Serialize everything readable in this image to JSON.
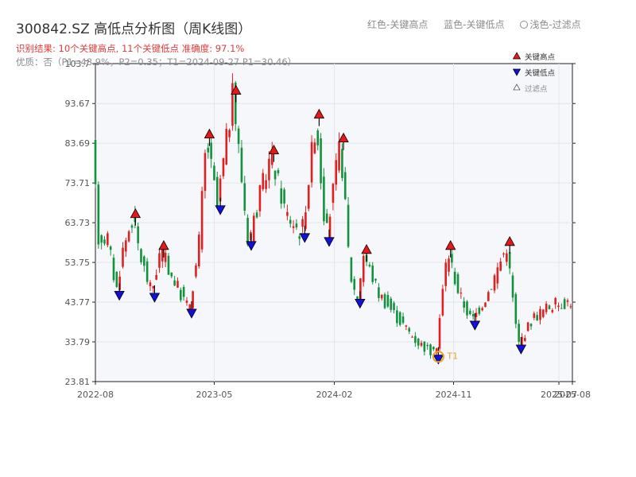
{
  "header": {
    "title": "300842.SZ 高低点分析图（周K线图）",
    "subtitle": "识别结果: 10个关键高点, 11个关键低点  准确度: 97.1%",
    "status": "优质：否（P1=48.9%，P2=0.35；T1=2024-09-27 P1=30.46）",
    "top_legend": {
      "red": "红色-关键高点",
      "blue": "蓝色-关键低点",
      "light": "浅色-过滤点"
    }
  },
  "colors": {
    "up": "#e02020",
    "down": "#12923c",
    "high_marker": "#e81818",
    "low_marker": "#1010d8",
    "t1": "#f0a020",
    "plot_bg": "#f5f7fa",
    "grid": "#e2e6ec"
  },
  "chart_data": {
    "type": "candlestick",
    "title": "300842.SZ 高低点分析图（周K线图）",
    "xlabel": "",
    "ylabel": "",
    "y_ticks": [
      "23.81",
      "33.79",
      "43.77",
      "53.75",
      "63.73",
      "73.71",
      "83.69",
      "93.67",
      "103.7"
    ],
    "ylim": [
      23.81,
      103.7
    ],
    "x_ticks": [
      "2022-08",
      "2023-05",
      "2024-02",
      "2024-11",
      "2025-07",
      "2025-08"
    ],
    "x_tick_dates": [
      "2022-08-01",
      "2023-05-01",
      "2024-02-01",
      "2024-11-01",
      "2025-07-01",
      "2025-08-01"
    ],
    "xlim": [
      "2022-08-01",
      "2025-08-01"
    ],
    "grid": true,
    "legend": {
      "position": "top-right",
      "entries": [
        {
          "label": "关键高点",
          "symbol": "triangle-up",
          "color": "red"
        },
        {
          "label": "关键低点",
          "symbol": "triangle-down",
          "color": "blue"
        },
        {
          "label": "过滤点",
          "symbol": "triangle-up-outline",
          "color": "light"
        }
      ]
    },
    "key_highs": [
      {
        "date": "2022-11-01",
        "value": 65
      },
      {
        "date": "2023-01-05",
        "value": 57
      },
      {
        "date": "2023-04-20",
        "value": 85
      },
      {
        "date": "2023-06-20",
        "value": 96
      },
      {
        "date": "2023-09-15",
        "value": 81
      },
      {
        "date": "2023-12-28",
        "value": 90
      },
      {
        "date": "2024-02-22",
        "value": 84
      },
      {
        "date": "2024-04-15",
        "value": 56
      },
      {
        "date": "2024-10-25",
        "value": 57
      },
      {
        "date": "2025-03-10",
        "value": 58
      }
    ],
    "key_lows": [
      {
        "date": "2022-09-25",
        "value": 46.5
      },
      {
        "date": "2022-12-15",
        "value": 46
      },
      {
        "date": "2023-03-10",
        "value": 42
      },
      {
        "date": "2023-05-15",
        "value": 68
      },
      {
        "date": "2023-07-25",
        "value": 59
      },
      {
        "date": "2023-11-25",
        "value": 61
      },
      {
        "date": "2024-01-20",
        "value": 60
      },
      {
        "date": "2024-03-31",
        "value": 44.5
      },
      {
        "date": "2024-09-27",
        "value": 30.46
      },
      {
        "date": "2024-12-20",
        "value": 39
      },
      {
        "date": "2025-04-05",
        "value": 33
      }
    ],
    "t1": {
      "label": "T1",
      "date": "2024-09-27",
      "value": 30.46
    },
    "price_path": [
      [
        "2022-08-01",
        82
      ],
      [
        "2022-08-15",
        60
      ],
      [
        "2022-09-05",
        60
      ],
      [
        "2022-09-25",
        46.5
      ],
      [
        "2022-10-10",
        57
      ],
      [
        "2022-11-01",
        65
      ],
      [
        "2022-11-20",
        55
      ],
      [
        "2022-12-15",
        46
      ],
      [
        "2023-01-05",
        57
      ],
      [
        "2023-02-01",
        50
      ],
      [
        "2023-03-10",
        42
      ],
      [
        "2023-04-01",
        56
      ],
      [
        "2023-04-20",
        85
      ],
      [
        "2023-05-15",
        68
      ],
      [
        "2023-06-20",
        96
      ],
      [
        "2023-07-25",
        59
      ],
      [
        "2023-09-15",
        81
      ],
      [
        "2023-10-20",
        66
      ],
      [
        "2023-11-25",
        61
      ],
      [
        "2023-12-28",
        90
      ],
      [
        "2024-01-20",
        60
      ],
      [
        "2024-02-22",
        84
      ],
      [
        "2024-03-15",
        51
      ],
      [
        "2024-03-31",
        44.5
      ],
      [
        "2024-04-15",
        56
      ],
      [
        "2024-05-20",
        46
      ],
      [
        "2024-07-01",
        40
      ],
      [
        "2024-08-15",
        34
      ],
      [
        "2024-09-27",
        30.46
      ],
      [
        "2024-10-25",
        57
      ],
      [
        "2024-11-20",
        46
      ],
      [
        "2024-12-20",
        39
      ],
      [
        "2025-01-25",
        46
      ],
      [
        "2025-03-10",
        58
      ],
      [
        "2025-04-05",
        33
      ],
      [
        "2025-05-10",
        40
      ],
      [
        "2025-06-20",
        43
      ],
      [
        "2025-08-01",
        44
      ]
    ]
  }
}
